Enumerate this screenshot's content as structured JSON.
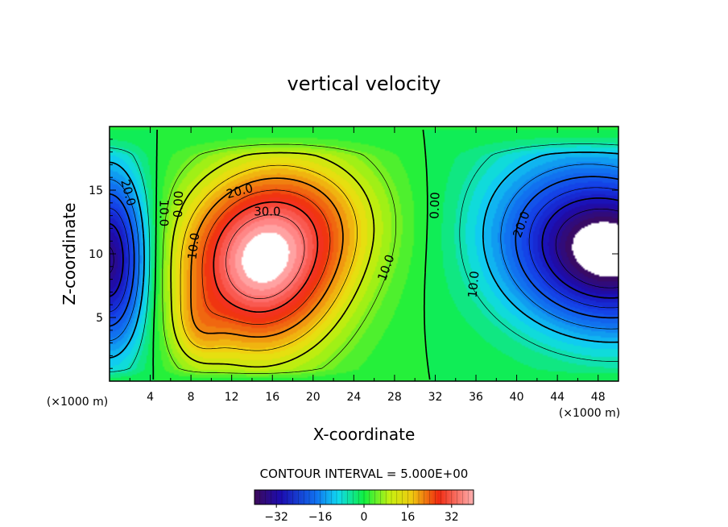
{
  "chart_data": {
    "type": "heatmap",
    "subtype": "filled-contour",
    "title": "vertical velocity",
    "xlabel": "X-coordinate",
    "ylabel": "Z-coordinate",
    "x_units_left": "(×1000 m)",
    "x_units_right": "(×1000 m)",
    "xlim": [
      0,
      50
    ],
    "ylim": [
      0,
      20
    ],
    "x_ticks": [
      4,
      8,
      12,
      16,
      20,
      24,
      28,
      32,
      36,
      40,
      44,
      48
    ],
    "y_ticks": [
      5,
      10,
      15
    ],
    "contour_interval_text": "CONTOUR INTERVAL = 5.000E+00",
    "contour_interval": 5,
    "colorbar": {
      "min": -40,
      "max": 40,
      "ticks": [
        -32,
        -16,
        0,
        16,
        32
      ],
      "tick_labels": [
        "−32",
        "−16",
        "0",
        "16",
        "32"
      ]
    },
    "contour_labels": [
      {
        "text": "20.0",
        "x": 1.8,
        "z": 14.8,
        "rot": 75
      },
      {
        "text": "10.0",
        "x": 5.3,
        "z": 13.2,
        "rot": 90
      },
      {
        "text": "0.00",
        "x": 6.8,
        "z": 13.9,
        "rot": -88
      },
      {
        "text": "20.0",
        "x": 12.8,
        "z": 14.9,
        "rot": -15
      },
      {
        "text": "30.0",
        "x": 15.5,
        "z": 13.3,
        "rot": 0
      },
      {
        "text": "10.0",
        "x": 8.3,
        "z": 10.6,
        "rot": -83
      },
      {
        "text": "10.0",
        "x": 27.2,
        "z": 8.9,
        "rot": -70
      },
      {
        "text": "0.00",
        "x": 32.0,
        "z": 13.8,
        "rot": -88
      },
      {
        "text": "20.0",
        "x": 40.5,
        "z": 12.3,
        "rot": -70
      },
      {
        "text": "10.0",
        "x": 35.8,
        "z": 7.6,
        "rot": -85
      }
    ]
  }
}
